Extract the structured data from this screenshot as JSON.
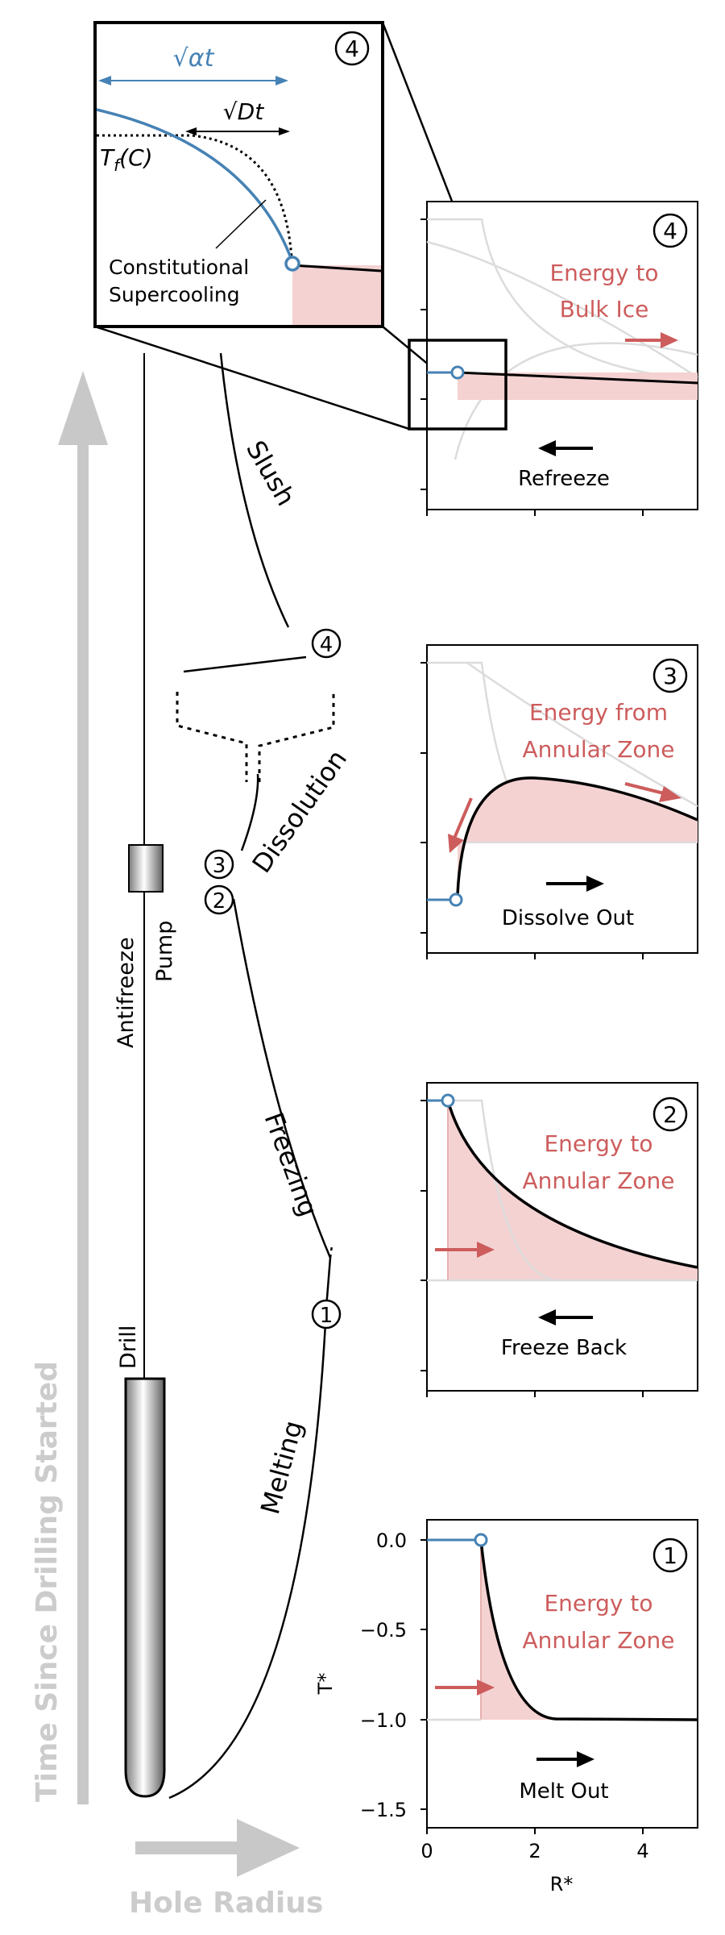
{
  "axis_labels": {
    "time": "Time Since Drilling Started",
    "radius": "Hole Radius"
  },
  "equipment": {
    "antifreeze_pump": [
      "Antifreeze",
      "Pump"
    ],
    "drill": "Drill"
  },
  "stages": {
    "melting": "Melting",
    "freezing": "Freezing",
    "dissolution": "Dissolution",
    "slush": "Slush"
  },
  "markers": [
    "1",
    "2",
    "3",
    "4"
  ],
  "inset": {
    "number": "4",
    "sqrt_alpha_t": "√αt",
    "sqrt_D_t": "√Dt",
    "tf_label": "T",
    "tf_sub": "f",
    "tf_arg": "(C)",
    "supercooling": [
      "Constitutional",
      "Supercooling"
    ]
  },
  "panels": [
    {
      "id": "panel-4",
      "number": "4",
      "energy": [
        "Energy to",
        "Bulk Ice"
      ],
      "motion": "Refreeze"
    },
    {
      "id": "panel-3",
      "number": "3",
      "energy": [
        "Energy from",
        "Annular Zone"
      ],
      "motion": "Dissolve Out"
    },
    {
      "id": "panel-2",
      "number": "2",
      "energy": [
        "Energy to",
        "Annular Zone"
      ],
      "motion": "Freeze Back"
    },
    {
      "id": "panel-1",
      "number": "1",
      "energy": [
        "Energy to",
        "Annular Zone"
      ],
      "motion": "Melt Out"
    }
  ],
  "panel1_axes": {
    "ylabel": "T*",
    "xlabel": "R*",
    "yticks": [
      "0.0",
      "−0.5",
      "−1.0",
      "−1.5"
    ],
    "xticks": [
      "0",
      "2",
      "4"
    ]
  },
  "colors": {
    "blue": "#4682b4",
    "red": "#cd5c5c",
    "pink": "#f4d2d2",
    "gray": "#c8c8c8"
  }
}
